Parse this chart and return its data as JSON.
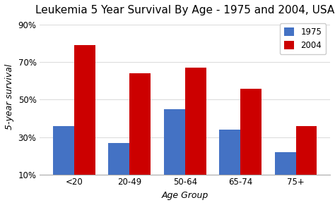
{
  "title": "Leukemia 5 Year Survival By Age - 1975 and 2004, USA",
  "categories": [
    "<20",
    "20-49",
    "50-64",
    "65-74",
    "75+"
  ],
  "values_1975": [
    36,
    27,
    45,
    34,
    22
  ],
  "values_2004": [
    79,
    64,
    67,
    56,
    36
  ],
  "color_1975": "#4472C4",
  "color_2004": "#CC0000",
  "xlabel": "Age Group",
  "ylabel": "5-year survival",
  "legend_labels": [
    "1975",
    "2004"
  ],
  "yticks": [
    10,
    30,
    50,
    70,
    90
  ],
  "ytick_labels": [
    "10%",
    "30%",
    "50%",
    "70%",
    "90%"
  ],
  "ylim": [
    10,
    93
  ],
  "bar_width": 0.38,
  "title_fontsize": 11,
  "axis_label_fontsize": 9,
  "tick_fontsize": 8.5,
  "legend_fontsize": 8.5,
  "background_color": "#FFFFFF",
  "grid_color": "#DDDDDD"
}
